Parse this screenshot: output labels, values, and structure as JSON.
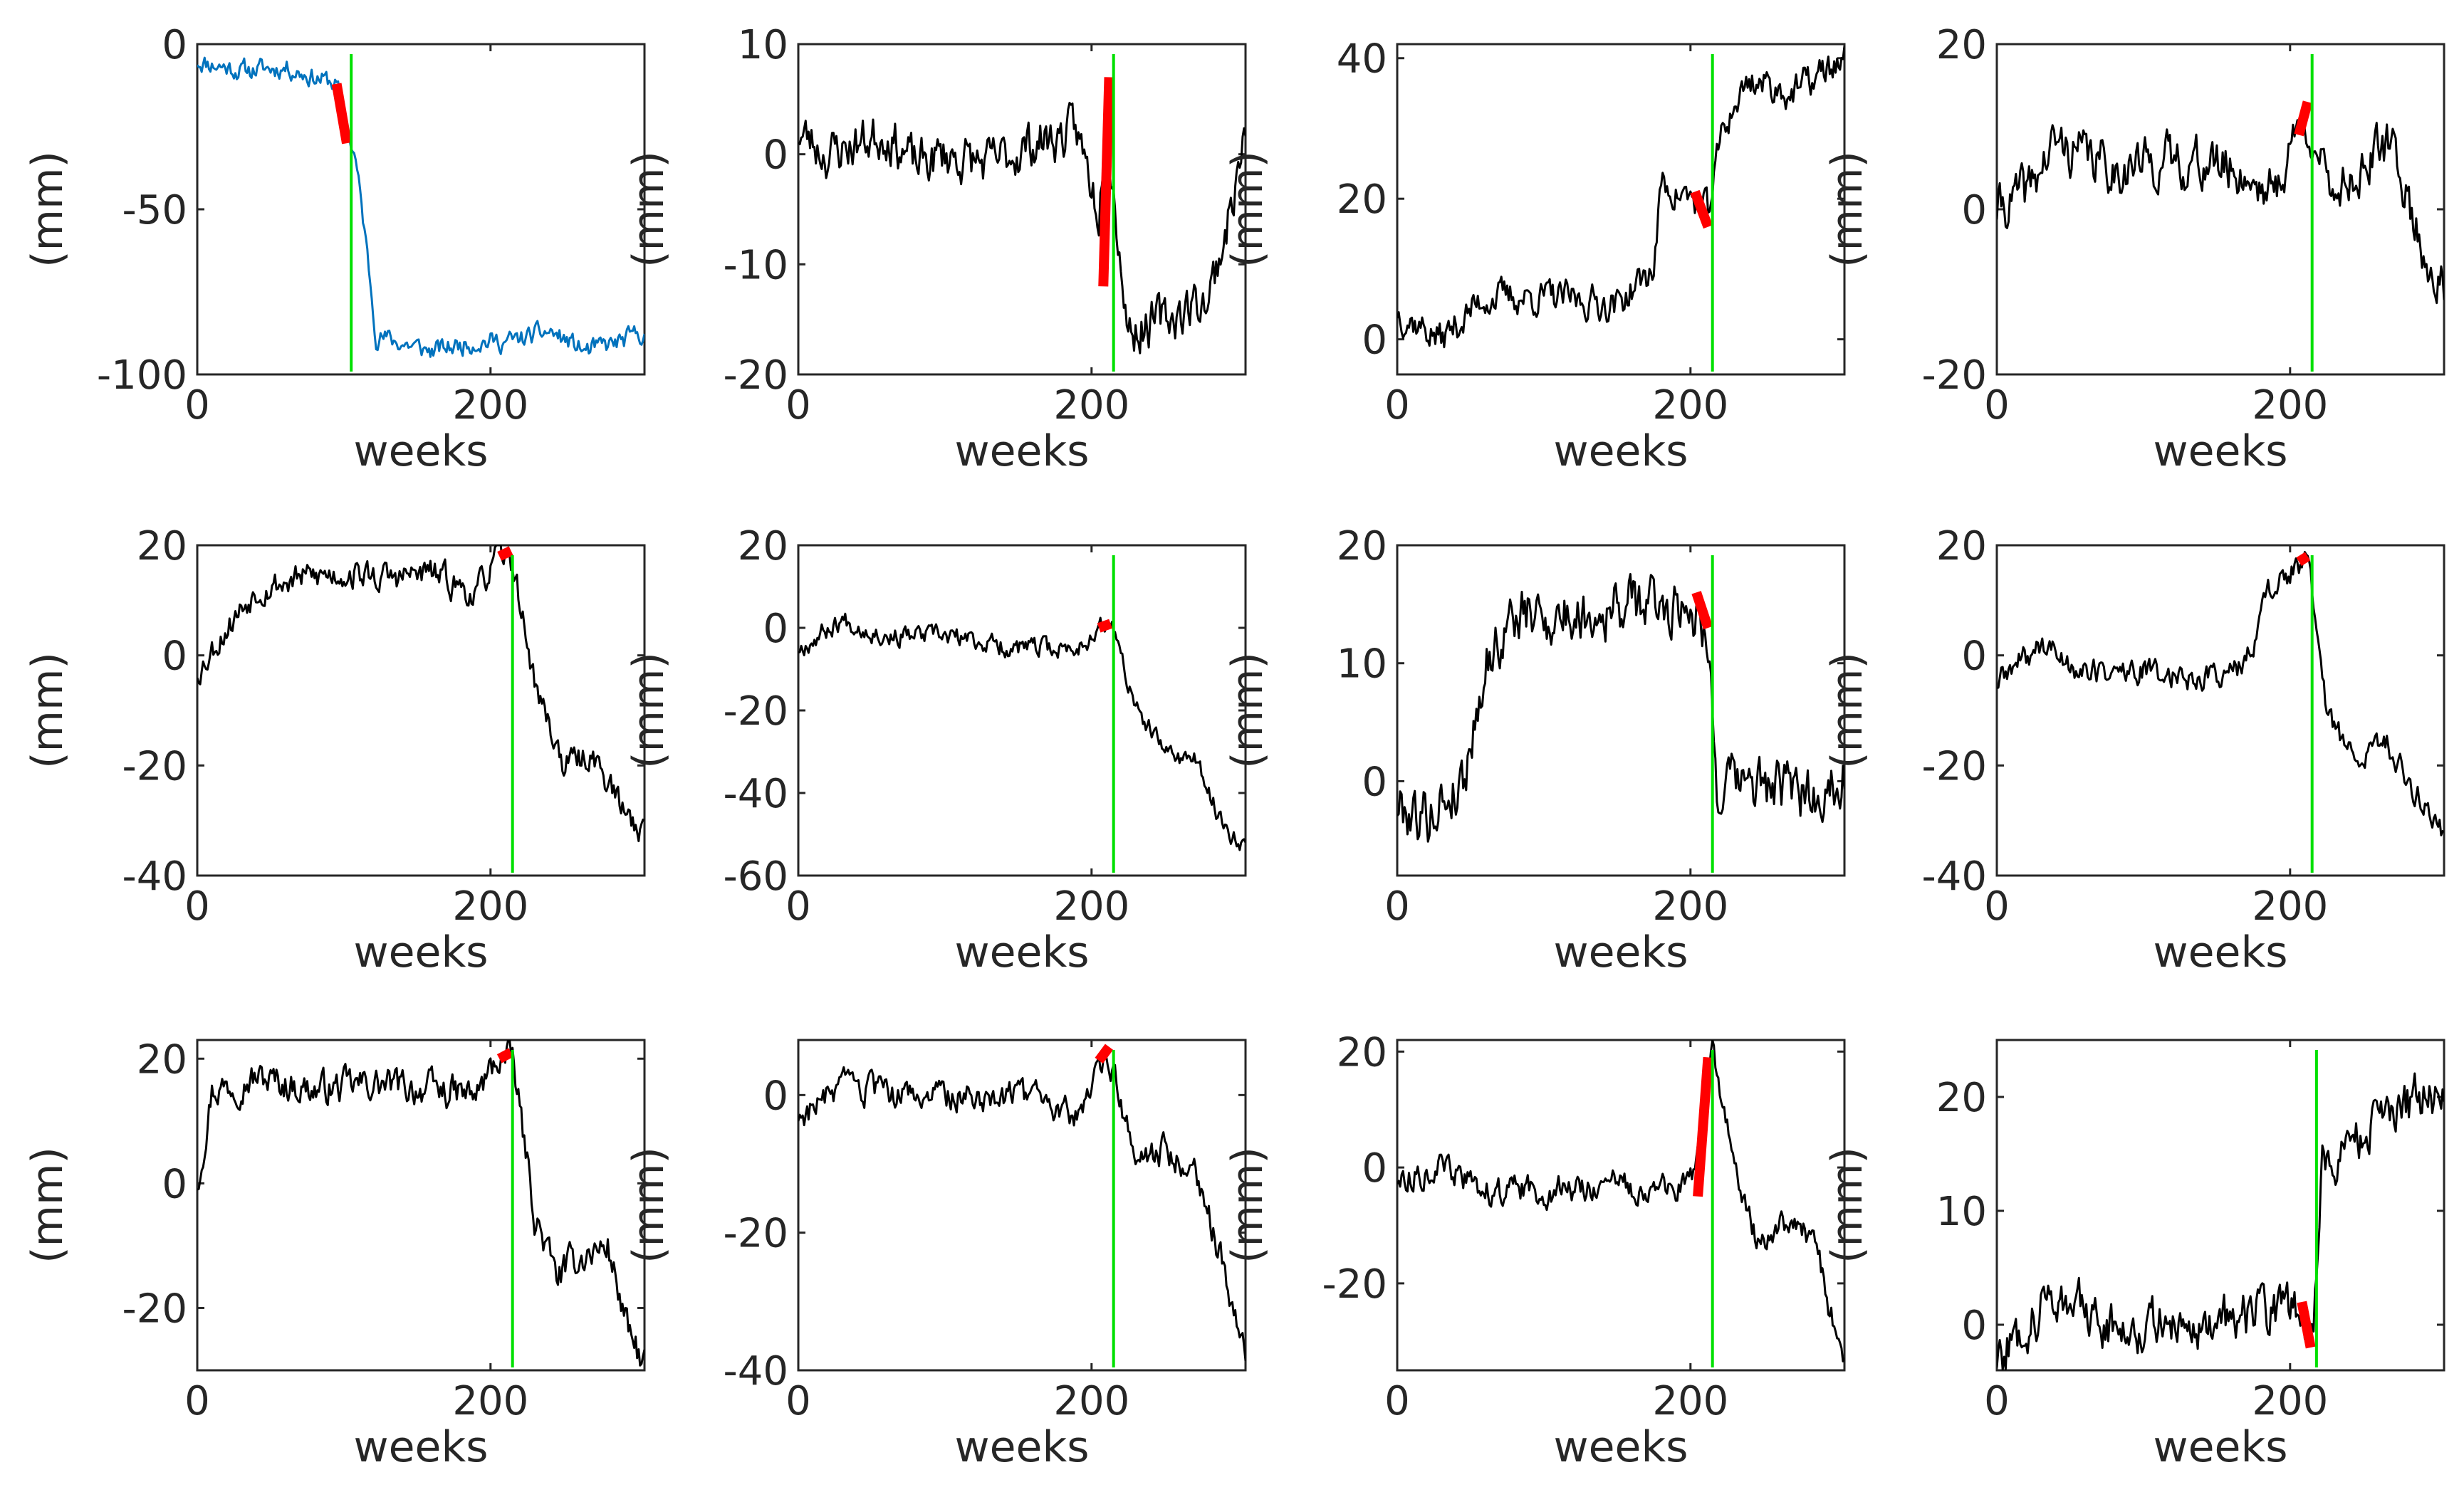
{
  "figure": {
    "rows": 3,
    "cols": 4,
    "colors": {
      "axis": "#262626",
      "series_first": "#0072bd",
      "series_default": "#000000",
      "highlight": "#ff0000",
      "event_line": "#00e000",
      "background": "#ffffff"
    }
  },
  "chart_data": [
    {
      "type": "line",
      "xlabel": "weeks",
      "ylabel": "(mm)",
      "xlim": [
        0,
        305
      ],
      "ylim": [
        -100,
        0
      ],
      "xticks": [
        0,
        200
      ],
      "xtick_labels": [
        "0",
        "200"
      ],
      "yticks": [
        -100,
        -50,
        0
      ],
      "ytick_labels": [
        "-100",
        "-50",
        "0"
      ],
      "series_color": "#0072bd",
      "event_x": 105,
      "highlight": {
        "x": [
          95,
          102
        ],
        "y": [
          -12,
          -30
        ]
      },
      "trend": [
        [
          0,
          -5
        ],
        [
          30,
          -8
        ],
        [
          60,
          -7
        ],
        [
          80,
          -10
        ],
        [
          95,
          -12
        ],
        [
          102,
          -25
        ],
        [
          108,
          -35
        ],
        [
          115,
          -60
        ],
        [
          122,
          -88
        ],
        [
          135,
          -90
        ],
        [
          160,
          -93
        ],
        [
          190,
          -90
        ],
        [
          215,
          -90
        ],
        [
          240,
          -87
        ],
        [
          265,
          -93
        ],
        [
          290,
          -90
        ],
        [
          305,
          -87
        ]
      ],
      "noise": 2.5,
      "seed": 11
    },
    {
      "type": "line",
      "xlabel": "weeks",
      "ylabel": "(mm)",
      "xlim": [
        0,
        305
      ],
      "ylim": [
        -20,
        10
      ],
      "xticks": [
        0,
        200
      ],
      "xtick_labels": [
        "0",
        "200"
      ],
      "yticks": [
        -20,
        -10,
        0,
        10
      ],
      "ytick_labels": [
        "-20",
        "-10",
        "0",
        "10"
      ],
      "series_color": "#000000",
      "event_x": 215,
      "highlight": {
        "x": [
          208,
          212
        ],
        "y": [
          -12,
          7
        ]
      },
      "trend": [
        [
          0,
          2
        ],
        [
          20,
          0
        ],
        [
          40,
          1
        ],
        [
          60,
          2
        ],
        [
          80,
          -1
        ],
        [
          100,
          0
        ],
        [
          130,
          -1
        ],
        [
          160,
          1
        ],
        [
          190,
          2
        ],
        [
          205,
          -5
        ],
        [
          210,
          5
        ],
        [
          214,
          -2
        ],
        [
          225,
          -16
        ],
        [
          250,
          -15
        ],
        [
          280,
          -13
        ],
        [
          295,
          -5
        ],
        [
          305,
          2
        ]
      ],
      "noise": 1.8,
      "seed": 23
    },
    {
      "type": "line",
      "xlabel": "weeks",
      "ylabel": "(mm)",
      "xlim": [
        0,
        305
      ],
      "ylim": [
        -5,
        42
      ],
      "xticks": [
        0,
        200
      ],
      "xtick_labels": [
        "0",
        "200"
      ],
      "yticks": [
        0,
        20,
        40
      ],
      "ytick_labels": [
        "0",
        "20",
        "40"
      ],
      "series_color": "#000000",
      "event_x": 215,
      "highlight": {
        "x": [
          203,
          212
        ],
        "y": [
          21,
          16
        ]
      },
      "trend": [
        [
          0,
          4
        ],
        [
          30,
          0
        ],
        [
          60,
          6
        ],
        [
          100,
          6
        ],
        [
          150,
          5
        ],
        [
          175,
          10
        ],
        [
          180,
          22
        ],
        [
          200,
          20
        ],
        [
          212,
          18
        ],
        [
          222,
          30
        ],
        [
          240,
          37
        ],
        [
          270,
          35
        ],
        [
          305,
          40
        ]
      ],
      "noise": 2,
      "seed": 37
    },
    {
      "type": "line",
      "xlabel": "weeks",
      "ylabel": "(mm)",
      "xlim": [
        0,
        305
      ],
      "ylim": [
        -20,
        20
      ],
      "xticks": [
        0,
        200
      ],
      "xtick_labels": [
        "0",
        "200"
      ],
      "yticks": [
        -20,
        0,
        20
      ],
      "ytick_labels": [
        "-20",
        "0",
        "20"
      ],
      "series_color": "#000000",
      "event_x": 215,
      "highlight": {
        "x": [
          206,
          212
        ],
        "y": [
          9,
          13
        ]
      },
      "trend": [
        [
          0,
          0
        ],
        [
          20,
          2
        ],
        [
          40,
          8
        ],
        [
          80,
          5
        ],
        [
          120,
          6
        ],
        [
          160,
          5
        ],
        [
          190,
          2
        ],
        [
          205,
          10
        ],
        [
          215,
          10
        ],
        [
          225,
          2
        ],
        [
          250,
          5
        ],
        [
          270,
          8
        ],
        [
          290,
          -5
        ],
        [
          305,
          -10
        ]
      ],
      "noise": 2.5,
      "seed": 41
    },
    {
      "type": "line",
      "xlabel": "weeks",
      "ylabel": "(mm)",
      "xlim": [
        0,
        305
      ],
      "ylim": [
        -40,
        20
      ],
      "xticks": [
        0,
        200
      ],
      "xtick_labels": [
        "0",
        "200"
      ],
      "yticks": [
        -40,
        -20,
        0,
        20
      ],
      "ytick_labels": [
        "-40",
        "-20",
        "0",
        "20"
      ],
      "series_color": "#000000",
      "event_x": 215,
      "highlight": {
        "x": [
          206,
          214
        ],
        "y": [
          18,
          19
        ]
      },
      "trend": [
        [
          0,
          -3
        ],
        [
          20,
          5
        ],
        [
          40,
          12
        ],
        [
          70,
          14
        ],
        [
          100,
          15
        ],
        [
          130,
          14
        ],
        [
          160,
          15
        ],
        [
          190,
          11
        ],
        [
          205,
          18
        ],
        [
          215,
          17
        ],
        [
          230,
          -5
        ],
        [
          250,
          -20
        ],
        [
          270,
          -18
        ],
        [
          290,
          -28
        ],
        [
          305,
          -32
        ]
      ],
      "noise": 2.2,
      "seed": 53
    },
    {
      "type": "line",
      "xlabel": "weeks",
      "ylabel": "(mm)",
      "xlim": [
        0,
        305
      ],
      "ylim": [
        -60,
        20
      ],
      "xticks": [
        0,
        200
      ],
      "xtick_labels": [
        "0",
        "200"
      ],
      "yticks": [
        -60,
        -40,
        -20,
        0,
        20
      ],
      "ytick_labels": [
        "-60",
        "-40",
        "-20",
        "0",
        "20"
      ],
      "series_color": "#000000",
      "event_x": 215,
      "highlight": {
        "x": [
          205,
          213
        ],
        "y": [
          0,
          1
        ]
      },
      "trend": [
        [
          0,
          -5
        ],
        [
          30,
          2
        ],
        [
          60,
          -2
        ],
        [
          100,
          -2
        ],
        [
          150,
          -5
        ],
        [
          190,
          -5
        ],
        [
          205,
          0
        ],
        [
          215,
          0
        ],
        [
          230,
          -20
        ],
        [
          250,
          -30
        ],
        [
          270,
          -32
        ],
        [
          290,
          -48
        ],
        [
          305,
          -52
        ]
      ],
      "noise": 2,
      "seed": 67
    },
    {
      "type": "line",
      "xlabel": "weeks",
      "ylabel": "(mm)",
      "xlim": [
        0,
        305
      ],
      "ylim": [
        -8,
        20
      ],
      "xticks": [
        0,
        200
      ],
      "xtick_labels": [
        "0",
        "200"
      ],
      "yticks": [
        0,
        10,
        20
      ],
      "ytick_labels": [
        "0",
        "10",
        "20"
      ],
      "series_color": "#000000",
      "event_x": 215,
      "highlight": {
        "x": [
          204,
          212
        ],
        "y": [
          16,
          13
        ]
      },
      "trend": [
        [
          0,
          -2
        ],
        [
          20,
          -3
        ],
        [
          45,
          0
        ],
        [
          60,
          10
        ],
        [
          80,
          14
        ],
        [
          120,
          14
        ],
        [
          160,
          15
        ],
        [
          200,
          15
        ],
        [
          212,
          13
        ],
        [
          218,
          -1
        ],
        [
          240,
          0
        ],
        [
          270,
          -1
        ],
        [
          290,
          -1
        ],
        [
          305,
          1
        ]
      ],
      "noise": 2,
      "seed": 79
    },
    {
      "type": "line",
      "xlabel": "weeks",
      "ylabel": "(mm)",
      "xlim": [
        0,
        305
      ],
      "ylim": [
        -40,
        20
      ],
      "xticks": [
        0,
        200
      ],
      "xtick_labels": [
        "0",
        "200"
      ],
      "yticks": [
        -40,
        -20,
        0,
        20
      ],
      "ytick_labels": [
        "-40",
        "-20",
        "0",
        "20"
      ],
      "series_color": "#000000",
      "event_x": 215,
      "highlight": {
        "x": [
          206,
          212
        ],
        "y": [
          17,
          18
        ]
      },
      "trend": [
        [
          0,
          -5
        ],
        [
          30,
          2
        ],
        [
          60,
          -3
        ],
        [
          100,
          -3
        ],
        [
          140,
          -4
        ],
        [
          170,
          -2
        ],
        [
          185,
          12
        ],
        [
          200,
          15
        ],
        [
          212,
          17
        ],
        [
          225,
          -10
        ],
        [
          245,
          -20
        ],
        [
          265,
          -15
        ],
        [
          285,
          -25
        ],
        [
          305,
          -32
        ]
      ],
      "noise": 2,
      "seed": 89
    },
    {
      "type": "line",
      "xlabel": "weeks",
      "ylabel": "(mm)",
      "xlim": [
        0,
        305
      ],
      "ylim": [
        -30,
        23
      ],
      "xticks": [
        0,
        200
      ],
      "xtick_labels": [
        "0",
        "200"
      ],
      "yticks": [
        -20,
        0,
        20
      ],
      "ytick_labels": [
        "-20",
        "0",
        "20"
      ],
      "series_color": "#000000",
      "event_x": 215,
      "highlight": {
        "x": [
          206,
          214
        ],
        "y": [
          20,
          21
        ]
      },
      "trend": [
        [
          0,
          0
        ],
        [
          10,
          15
        ],
        [
          40,
          17
        ],
        [
          80,
          15
        ],
        [
          120,
          16
        ],
        [
          160,
          15
        ],
        [
          190,
          14
        ],
        [
          205,
          20
        ],
        [
          215,
          20
        ],
        [
          230,
          -5
        ],
        [
          245,
          -15
        ],
        [
          260,
          -12
        ],
        [
          280,
          -10
        ],
        [
          295,
          -25
        ],
        [
          305,
          -29
        ]
      ],
      "noise": 2.2,
      "seed": 97
    },
    {
      "type": "line",
      "xlabel": "weeks",
      "ylabel": "(mm)",
      "xlim": [
        0,
        305
      ],
      "ylim": [
        -40,
        8
      ],
      "xticks": [
        0,
        200
      ],
      "xtick_labels": [
        "0",
        "200"
      ],
      "yticks": [
        -40,
        -20,
        0
      ],
      "ytick_labels": [
        "-40",
        "-20",
        "0"
      ],
      "series_color": "#000000",
      "event_x": 215,
      "highlight": {
        "x": [
          205,
          212
        ],
        "y": [
          5,
          7
        ]
      },
      "trend": [
        [
          0,
          -3
        ],
        [
          30,
          1
        ],
        [
          60,
          0
        ],
        [
          100,
          0
        ],
        [
          150,
          0
        ],
        [
          190,
          -3
        ],
        [
          205,
          5
        ],
        [
          214,
          4
        ],
        [
          230,
          -10
        ],
        [
          250,
          -8
        ],
        [
          270,
          -10
        ],
        [
          290,
          -25
        ],
        [
          305,
          -38
        ]
      ],
      "noise": 1.8,
      "seed": 103
    },
    {
      "type": "line",
      "xlabel": "weeks",
      "ylabel": "(mm)",
      "xlim": [
        0,
        305
      ],
      "ylim": [
        -35,
        22
      ],
      "xticks": [
        0,
        200
      ],
      "xtick_labels": [
        "0",
        "200"
      ],
      "yticks": [
        -20,
        0,
        20
      ],
      "ytick_labels": [
        "-20",
        "0",
        "20"
      ],
      "series_color": "#000000",
      "event_x": 215,
      "highlight": {
        "x": [
          205,
          212
        ],
        "y": [
          -5,
          19
        ]
      },
      "trend": [
        [
          0,
          -2
        ],
        [
          30,
          0
        ],
        [
          60,
          -4
        ],
        [
          100,
          -4
        ],
        [
          150,
          -3
        ],
        [
          190,
          -4
        ],
        [
          202,
          -2
        ],
        [
          210,
          15
        ],
        [
          215,
          20
        ],
        [
          230,
          0
        ],
        [
          245,
          -12
        ],
        [
          265,
          -10
        ],
        [
          285,
          -12
        ],
        [
          295,
          -25
        ],
        [
          305,
          -33
        ]
      ],
      "noise": 2,
      "seed": 113
    },
    {
      "type": "line",
      "xlabel": "weeks",
      "ylabel": "(mm)",
      "xlim": [
        0,
        305
      ],
      "ylim": [
        -4,
        25
      ],
      "xticks": [
        0,
        200
      ],
      "xtick_labels": [
        "0",
        "200"
      ],
      "yticks": [
        0,
        10,
        20
      ],
      "ytick_labels": [
        "0",
        "10",
        "20"
      ],
      "series_color": "#000000",
      "event_x": 218,
      "highlight": {
        "x": [
          208,
          214
        ],
        "y": [
          2,
          -2
        ]
      },
      "trend": [
        [
          0,
          -3
        ],
        [
          20,
          0
        ],
        [
          40,
          3
        ],
        [
          70,
          0
        ],
        [
          110,
          0
        ],
        [
          150,
          0
        ],
        [
          180,
          1
        ],
        [
          200,
          2
        ],
        [
          210,
          0
        ],
        [
          216,
          0
        ],
        [
          222,
          14
        ],
        [
          240,
          16
        ],
        [
          270,
          18
        ],
        [
          290,
          20
        ],
        [
          305,
          19
        ]
      ],
      "noise": 1.8,
      "seed": 127
    }
  ]
}
